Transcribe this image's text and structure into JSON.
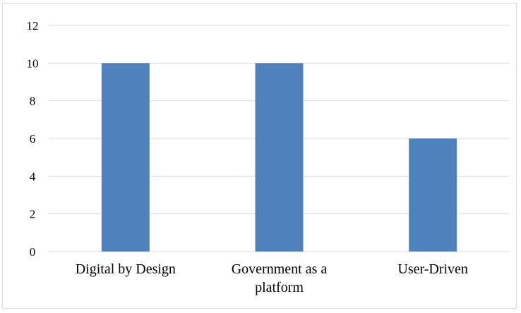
{
  "chart_data": {
    "type": "bar",
    "title": "",
    "xlabel": "",
    "ylabel": "",
    "categories": [
      [
        "Digital by Design"
      ],
      [
        "Government as a",
        "platform"
      ],
      [
        "User-Driven"
      ]
    ],
    "values": [
      10,
      10,
      6
    ],
    "ylim": [
      0,
      12
    ],
    "yticks": [
      "0",
      "2",
      "4",
      "6",
      "8",
      "10",
      "12"
    ],
    "grid": true,
    "legend": "none",
    "bar_color": "#4f81bd"
  }
}
